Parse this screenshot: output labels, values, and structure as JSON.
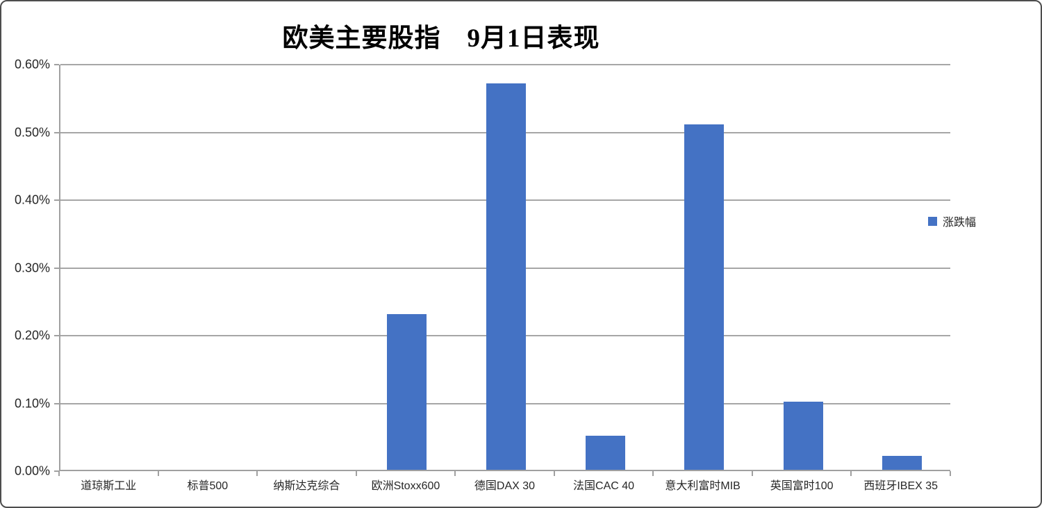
{
  "chart": {
    "title": "欧美主要股指　9月1日表现",
    "legend": {
      "label": "涨跌幅",
      "swatch_color": "#4472C4",
      "position": "right"
    }
  },
  "chart_data": {
    "type": "bar",
    "title": "欧美主要股指　9月1日表现",
    "categories": [
      "道琼斯工业",
      "标普500",
      "纳斯达克综合",
      "欧洲Stoxx600",
      "德国DAX 30",
      "法国CAC 40",
      "意大利富时MIB",
      "英国富时100",
      "西班牙IBEX 35"
    ],
    "series": [
      {
        "name": "涨跌幅",
        "values": [
          0,
          0,
          0,
          0.23,
          0.57,
          0.05,
          0.51,
          0.1,
          0.02
        ]
      }
    ],
    "value_unit": "%",
    "ylim": [
      0,
      0.6
    ],
    "y_ticks": [
      "0.00%",
      "0.10%",
      "0.20%",
      "0.30%",
      "0.40%",
      "0.50%",
      "0.60%"
    ],
    "xlabel": "",
    "ylabel": "",
    "grid": true,
    "legend_position": "right",
    "bar_color": "#4472C4"
  },
  "colors": {
    "bar": "#4472C4",
    "gridline": "#A6A6A6",
    "axis": "#A0A0A0",
    "text": "#262626",
    "border": "#4D4D4D",
    "background": "#FFFFFF"
  }
}
